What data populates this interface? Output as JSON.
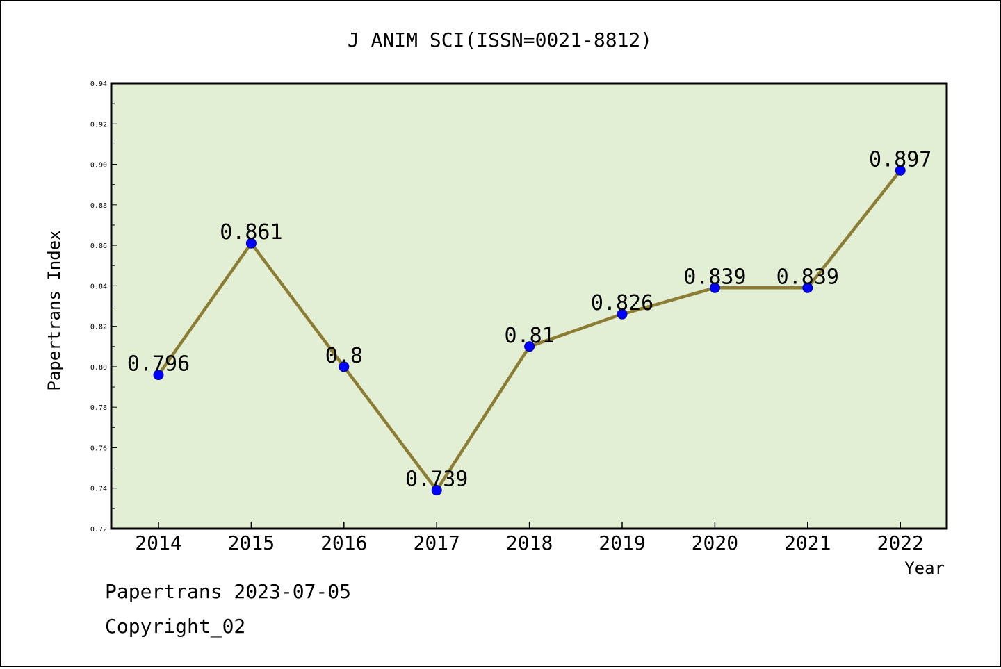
{
  "chart_data": {
    "type": "line",
    "title": "J ANIM SCI(ISSN=0021-8812)",
    "xlabel": "Year",
    "ylabel": "Papertrans Index",
    "categories": [
      "2014",
      "2015",
      "2016",
      "2017",
      "2018",
      "2019",
      "2020",
      "2021",
      "2022"
    ],
    "series": [
      {
        "values": [
          0.796,
          0.861,
          0.8,
          0.739,
          0.81,
          0.826,
          0.839,
          0.839,
          0.897
        ]
      }
    ],
    "data_labels": [
      "0.796",
      "0.861",
      "0.8",
      "0.739",
      "0.81",
      "0.826",
      "0.839",
      "0.839",
      "0.897"
    ],
    "ylim": [
      0.72,
      0.94
    ],
    "yticks": [
      "0.72",
      "0.74",
      "0.76",
      "0.78",
      "0.80",
      "0.82",
      "0.84",
      "0.86",
      "0.88",
      "0.90",
      "0.92",
      "0.94"
    ],
    "grid": false,
    "colors": {
      "plot_background": "#e2efd5",
      "line": "#8c7d35",
      "marker": "#0000ff"
    }
  },
  "footer": {
    "source_date": "Papertrans 2023-07-05",
    "copyright": "Copyright_02"
  }
}
